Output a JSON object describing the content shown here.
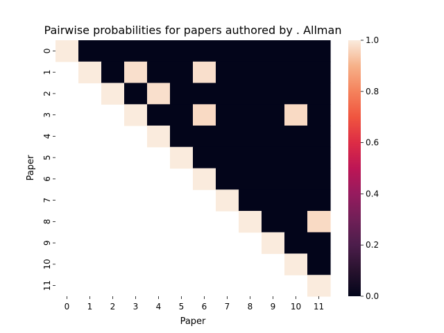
{
  "chart_data": {
    "type": "heatmap",
    "title": "Pairwise probabilities for papers authored by . Allman",
    "xlabel": "Paper",
    "ylabel": "Paper",
    "x_categories": [
      "0",
      "1",
      "2",
      "3",
      "4",
      "5",
      "6",
      "7",
      "8",
      "9",
      "10",
      "11"
    ],
    "y_categories": [
      "0",
      "1",
      "2",
      "3",
      "4",
      "5",
      "6",
      "7",
      "8",
      "9",
      "10",
      "11"
    ],
    "matrix": [
      [
        1.0,
        0.0,
        0.0,
        0.0,
        0.0,
        0.0,
        0.0,
        0.0,
        0.0,
        0.0,
        0.0,
        0.0
      ],
      [
        null,
        1.0,
        0.0,
        0.98,
        0.0,
        0.0,
        0.98,
        0.0,
        0.0,
        0.0,
        0.0,
        0.0
      ],
      [
        null,
        null,
        1.0,
        0.0,
        0.98,
        0.0,
        0.0,
        0.0,
        0.0,
        0.0,
        0.0,
        0.0
      ],
      [
        null,
        null,
        null,
        1.0,
        0.0,
        0.0,
        0.97,
        0.0,
        0.0,
        0.0,
        0.97,
        0.0
      ],
      [
        null,
        null,
        null,
        null,
        1.0,
        0.0,
        0.0,
        0.0,
        0.0,
        0.0,
        0.0,
        0.0
      ],
      [
        null,
        null,
        null,
        null,
        null,
        1.0,
        0.0,
        0.0,
        0.0,
        0.0,
        0.0,
        0.0
      ],
      [
        null,
        null,
        null,
        null,
        null,
        null,
        1.0,
        0.0,
        0.0,
        0.0,
        0.0,
        0.0
      ],
      [
        null,
        null,
        null,
        null,
        null,
        null,
        null,
        1.0,
        0.0,
        0.0,
        0.0,
        0.0
      ],
      [
        null,
        null,
        null,
        null,
        null,
        null,
        null,
        null,
        1.0,
        0.0,
        0.0,
        0.97
      ],
      [
        null,
        null,
        null,
        null,
        null,
        null,
        null,
        null,
        null,
        1.0,
        0.0,
        0.0
      ],
      [
        null,
        null,
        null,
        null,
        null,
        null,
        null,
        null,
        null,
        null,
        1.0,
        0.0
      ],
      [
        null,
        null,
        null,
        null,
        null,
        null,
        null,
        null,
        null,
        null,
        null,
        1.0
      ]
    ],
    "colorbar": {
      "min": 0.0,
      "max": 1.0,
      "ticks": [
        "0.0",
        "0.2",
        "0.4",
        "0.6",
        "0.8",
        "1.0"
      ]
    },
    "grid": false
  }
}
